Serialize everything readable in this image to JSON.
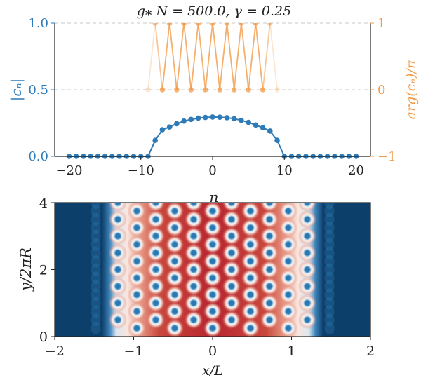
{
  "chart_data": [
    {
      "type": "scatter",
      "title": "g⁎ N = 500.0, γ = 0.25",
      "xlabel": "n",
      "ylabel": "|cₙ|",
      "y2label": "arg(cₙ)/π",
      "xlim": [
        -22,
        22
      ],
      "ylim": [
        0,
        1
      ],
      "y2lim": [
        -1,
        1
      ],
      "xticks": [
        -20,
        -10,
        0,
        10,
        20
      ],
      "yticks": [
        "0.0",
        "0.5",
        "1.0"
      ],
      "y2ticks": [
        "−1",
        "0",
        "1"
      ],
      "grid": "dashed horizontal at 0.5 and 1.0",
      "colors": {
        "magnitude": "#2f7bb8",
        "phase": "#f29b48",
        "grid": "#c8c8c8"
      },
      "series": [
        {
          "axis": "left",
          "x": [
            -20,
            -19,
            -18,
            -17,
            -16,
            -15,
            -14,
            -13,
            -12,
            -11,
            -10,
            -9,
            -8,
            -7,
            -6,
            -5,
            -4,
            -3,
            -2,
            -1,
            0,
            1,
            2,
            3,
            4,
            5,
            6,
            7,
            8,
            9,
            10,
            11,
            12,
            13,
            14,
            15,
            16,
            17,
            18,
            19,
            20
          ],
          "values": [
            0,
            0,
            0,
            0,
            0,
            0,
            0,
            0,
            0,
            0,
            0,
            0,
            0.12,
            0.2,
            0.22,
            0.245,
            0.265,
            0.277,
            0.287,
            0.292,
            0.295,
            0.294,
            0.29,
            0.282,
            0.27,
            0.255,
            0.235,
            0.215,
            0.19,
            0.12,
            0,
            0,
            0,
            0,
            0,
            0,
            0,
            0,
            0,
            0,
            0
          ]
        },
        {
          "axis": "right",
          "x": [
            -9,
            -8,
            -7,
            -6,
            -5,
            -4,
            -3,
            -2,
            -1,
            0,
            1,
            2,
            3,
            4,
            5,
            6,
            7,
            8,
            9
          ],
          "values": [
            0,
            1,
            0,
            1,
            0,
            1,
            0,
            1,
            0,
            1,
            0,
            1,
            0,
            1,
            0,
            1,
            0,
            1,
            0
          ]
        }
      ]
    },
    {
      "type": "heatmap",
      "xlabel": "x/L",
      "ylabel": "y/2πR",
      "xlim": [
        -2,
        2
      ],
      "ylim": [
        0,
        4
      ],
      "xticks": [
        "−2",
        "−1",
        "0",
        "1",
        "2"
      ],
      "yticks": [
        "0",
        "2",
        "4"
      ],
      "colormap": "RdBu (red = high density, dark blue = low)",
      "colors": {
        "background": "#0d3f6b",
        "edge": "#dfe8ef",
        "core": "#b8252f",
        "vortex": "#2b78b0"
      },
      "vortex_lattice": {
        "columns_x": [
          -1.2,
          -0.96,
          -0.72,
          -0.48,
          -0.24,
          0,
          0.24,
          0.48,
          0.72,
          0.96,
          1.2
        ],
        "rows_y_even": [
          0.5,
          1.0,
          1.5,
          2.0,
          2.5,
          3.0,
          3.5,
          4.0
        ],
        "rows_y_odd": [
          0.25,
          0.75,
          1.25,
          1.75,
          2.25,
          2.75,
          3.25,
          3.75
        ]
      }
    }
  ]
}
